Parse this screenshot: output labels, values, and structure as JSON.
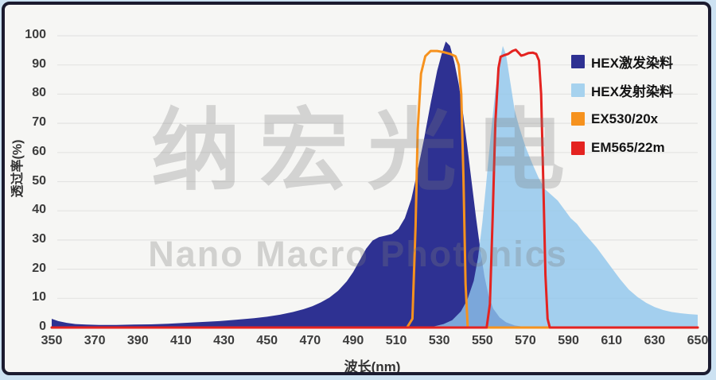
{
  "watermark": {
    "line1": "纳宏光电",
    "line2": "Nano Macro Photonics"
  },
  "frame": {
    "outer_background": "#cde2f2",
    "card_background": "#f6f6f4",
    "border_color": "#1b1b2f",
    "gridline_color": "#e3e3e2"
  },
  "chart_data": {
    "type": "area",
    "title": "",
    "xlabel": "波长(nm)",
    "ylabel": "透过率(%)",
    "xlim": [
      350,
      650
    ],
    "ylim": [
      0,
      100
    ],
    "x_ticks": [
      350,
      370,
      390,
      410,
      430,
      450,
      470,
      490,
      510,
      530,
      550,
      570,
      590,
      610,
      630,
      650
    ],
    "y_ticks": [
      0,
      10,
      20,
      30,
      40,
      50,
      60,
      70,
      80,
      90,
      100
    ],
    "grid": "horizontal",
    "legend_position": "top-right",
    "series": [
      {
        "name": "HEX激发染料",
        "type": "area",
        "color": "#2e3192",
        "legend_color": "#2e3192",
        "fill_opacity": 1,
        "points": [
          [
            350,
            3
          ],
          [
            353,
            2.2
          ],
          [
            357,
            1.6
          ],
          [
            361,
            1.2
          ],
          [
            366,
            1
          ],
          [
            372,
            0.9
          ],
          [
            380,
            0.9
          ],
          [
            388,
            1
          ],
          [
            396,
            1.1
          ],
          [
            404,
            1.3
          ],
          [
            412,
            1.6
          ],
          [
            420,
            1.9
          ],
          [
            428,
            2.2
          ],
          [
            436,
            2.7
          ],
          [
            444,
            3.2
          ],
          [
            450,
            3.7
          ],
          [
            456,
            4.4
          ],
          [
            462,
            5.3
          ],
          [
            467,
            6.3
          ],
          [
            471,
            7.3
          ],
          [
            475,
            8.6
          ],
          [
            479,
            10.3
          ],
          [
            483,
            12.6
          ],
          [
            487,
            15.8
          ],
          [
            490,
            19
          ],
          [
            493,
            23
          ],
          [
            496,
            27
          ],
          [
            499,
            29.8
          ],
          [
            502,
            31
          ],
          [
            505,
            31.5
          ],
          [
            508,
            32.1
          ],
          [
            511,
            33.8
          ],
          [
            514,
            37.5
          ],
          [
            517,
            44
          ],
          [
            520,
            54
          ],
          [
            523,
            65
          ],
          [
            526,
            77
          ],
          [
            529,
            88
          ],
          [
            531,
            93.5
          ],
          [
            533,
            98
          ],
          [
            535,
            96.5
          ],
          [
            537,
            91
          ],
          [
            539,
            83.5
          ],
          [
            541,
            73.5
          ],
          [
            543,
            62
          ],
          [
            545,
            50
          ],
          [
            547,
            38
          ],
          [
            549,
            27
          ],
          [
            551,
            17.5
          ],
          [
            553,
            10.5
          ],
          [
            555,
            6.5
          ],
          [
            558,
            3.5
          ],
          [
            561,
            1.8
          ],
          [
            565,
            0.7
          ],
          [
            570,
            0.2
          ],
          [
            576,
            0
          ]
        ]
      },
      {
        "name": "HEX发射染料",
        "type": "area",
        "color": "#8ec6ec",
        "legend_color": "#a6d2ee",
        "fill_opacity": 0.8,
        "points": [
          [
            524,
            0
          ],
          [
            528,
            0.5
          ],
          [
            532,
            1.2
          ],
          [
            536,
            2.5
          ],
          [
            540,
            5.5
          ],
          [
            543,
            9.5
          ],
          [
            546,
            16
          ],
          [
            548,
            24
          ],
          [
            550,
            36
          ],
          [
            552,
            51
          ],
          [
            554,
            67
          ],
          [
            556,
            81
          ],
          [
            558,
            91
          ],
          [
            559.5,
            96.5
          ],
          [
            561,
            93.5
          ],
          [
            563,
            84
          ],
          [
            565,
            74.5
          ],
          [
            567,
            69
          ],
          [
            570,
            62
          ],
          [
            573,
            56.5
          ],
          [
            576,
            51.5
          ],
          [
            579,
            47.5
          ],
          [
            582,
            45.5
          ],
          [
            585,
            43.5
          ],
          [
            588,
            40.5
          ],
          [
            591,
            37.5
          ],
          [
            594,
            35.5
          ],
          [
            597,
            32.5
          ],
          [
            600,
            30
          ],
          [
            603,
            27.5
          ],
          [
            606,
            24.5
          ],
          [
            610,
            20.5
          ],
          [
            614,
            16.5
          ],
          [
            618,
            13
          ],
          [
            622,
            10.5
          ],
          [
            626,
            8.5
          ],
          [
            630,
            7
          ],
          [
            634,
            6
          ],
          [
            638,
            5.3
          ],
          [
            642,
            4.9
          ],
          [
            646,
            4.6
          ],
          [
            650,
            4.4
          ]
        ]
      },
      {
        "name": "EX530/20x",
        "type": "line",
        "color": "#f6921e",
        "legend_color": "#f6921e",
        "width": 3,
        "points": [
          [
            350,
            0
          ],
          [
            515,
            0
          ],
          [
            517.5,
            3
          ],
          [
            519,
            35
          ],
          [
            520,
            68
          ],
          [
            521.5,
            87
          ],
          [
            523.5,
            93
          ],
          [
            526,
            94.8
          ],
          [
            529,
            94.8
          ],
          [
            532,
            94.4
          ],
          [
            535,
            93.8
          ],
          [
            537.5,
            93
          ],
          [
            539,
            90
          ],
          [
            540.2,
            80
          ],
          [
            541.2,
            52
          ],
          [
            542.2,
            15
          ],
          [
            543.2,
            0
          ],
          [
            650,
            0
          ]
        ]
      },
      {
        "name": "EM565/22m",
        "type": "line",
        "color": "#e42320",
        "legend_color": "#e42320",
        "width": 3,
        "points": [
          [
            350,
            0
          ],
          [
            552,
            0
          ],
          [
            553.5,
            8
          ],
          [
            554.8,
            38
          ],
          [
            556,
            70
          ],
          [
            557.5,
            89
          ],
          [
            558.5,
            92.8
          ],
          [
            560,
            93.3
          ],
          [
            562,
            93.8
          ],
          [
            564,
            94.8
          ],
          [
            565.5,
            95.2
          ],
          [
            566.8,
            94.2
          ],
          [
            568,
            93.2
          ],
          [
            569.5,
            93.5
          ],
          [
            571.5,
            94.1
          ],
          [
            573.5,
            94.2
          ],
          [
            575,
            93.8
          ],
          [
            576.3,
            91.5
          ],
          [
            577.3,
            80
          ],
          [
            578.3,
            50
          ],
          [
            579.3,
            18
          ],
          [
            580.3,
            3
          ],
          [
            581.3,
            0
          ],
          [
            650,
            0
          ]
        ]
      }
    ]
  }
}
